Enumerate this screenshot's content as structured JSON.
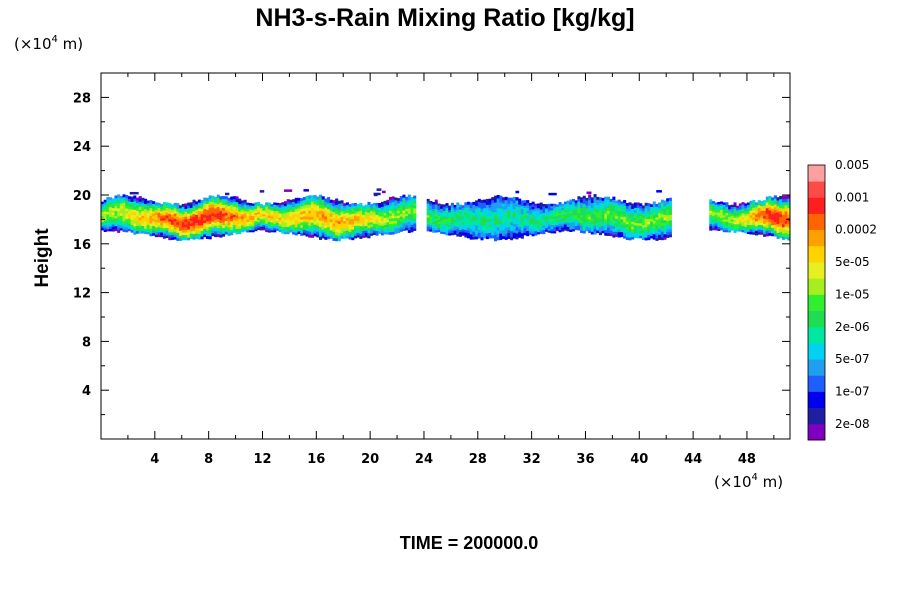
{
  "chart_data": {
    "type": "heatmap",
    "title": "NH3-s-Rain Mixing Ratio [kg/kg]",
    "ylabel": "Height",
    "xlabel": "",
    "x_unit": {
      "prefix": "(×10",
      "exp": "4",
      "suffix": " m)"
    },
    "y_unit": {
      "prefix": "(×10",
      "exp": "4",
      "suffix": " m)"
    },
    "xlim": [
      0,
      51.2
    ],
    "ylim": [
      0,
      30
    ],
    "x_ticks": [
      4,
      8,
      12,
      16,
      20,
      24,
      28,
      32,
      36,
      40,
      44,
      48
    ],
    "y_ticks": [
      4,
      8,
      12,
      16,
      20,
      24,
      28
    ],
    "time_label": "TIME = 200000.0",
    "colorbar": {
      "colors": [
        "#7f00bf",
        "#1f1fa3",
        "#0000ef",
        "#1f5fff",
        "#1f9fef",
        "#00d2f0",
        "#00e8a0",
        "#1fdc50",
        "#2fef2f",
        "#a6ef1f",
        "#e6ef1f",
        "#ffd200",
        "#ffa000",
        "#ff6400",
        "#ff1f1f",
        "#ff4a4a",
        "#ff9f9f"
      ],
      "labels": [
        "2e-08",
        "1e-07",
        "5e-07",
        "2e-06",
        "1e-05",
        "5e-05",
        "0.0002",
        "0.001",
        "0.005"
      ]
    },
    "field_extent": {
      "z_bottom": 16.3,
      "z_top": 20.3,
      "x_min": 0,
      "x_max": 51.2
    }
  }
}
